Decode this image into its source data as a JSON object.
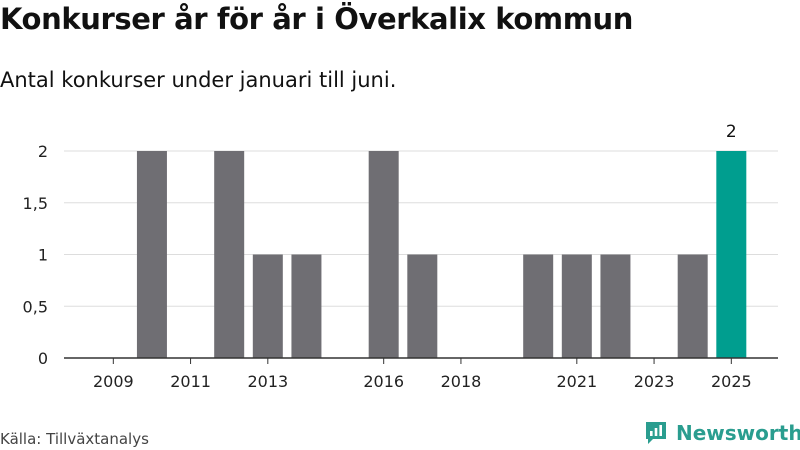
{
  "header": {
    "title": "Konkurser år för år i Överkalix kommun",
    "subtitle": "Antal konkurser under januari till juni."
  },
  "footer": {
    "source": "Källa: Tillväxtanalys",
    "brand": "Newsworthy"
  },
  "colors": {
    "bar": "#6f6e73",
    "highlight": "#009e8f",
    "grid": "#dddddd",
    "axis": "#333333",
    "brand": "#2a9d8f"
  },
  "chart_data": {
    "type": "bar",
    "title": "Konkurser år för år i Överkalix kommun",
    "subtitle": "Antal konkurser under januari till juni.",
    "xlabel": "",
    "ylabel": "",
    "categories": [
      2009,
      2010,
      2011,
      2012,
      2013,
      2014,
      2015,
      2016,
      2017,
      2018,
      2019,
      2020,
      2021,
      2022,
      2023,
      2024,
      2025
    ],
    "values": [
      0,
      2,
      0,
      2,
      1,
      1,
      0,
      2,
      1,
      0,
      0,
      1,
      1,
      1,
      0,
      1,
      2
    ],
    "x_tick_labels": [
      "2009",
      "2011",
      "2013",
      "2016",
      "2018",
      "2021",
      "2023",
      "2025"
    ],
    "y_ticks": [
      0,
      0.5,
      1,
      1.5,
      2
    ],
    "y_tick_labels": [
      "0",
      "0,5",
      "1",
      "1,5",
      "2"
    ],
    "ylim": [
      0,
      2
    ],
    "grid": true,
    "highlight_category": 2025,
    "data_labels": [
      {
        "category": 2025,
        "text": "2"
      }
    ]
  }
}
